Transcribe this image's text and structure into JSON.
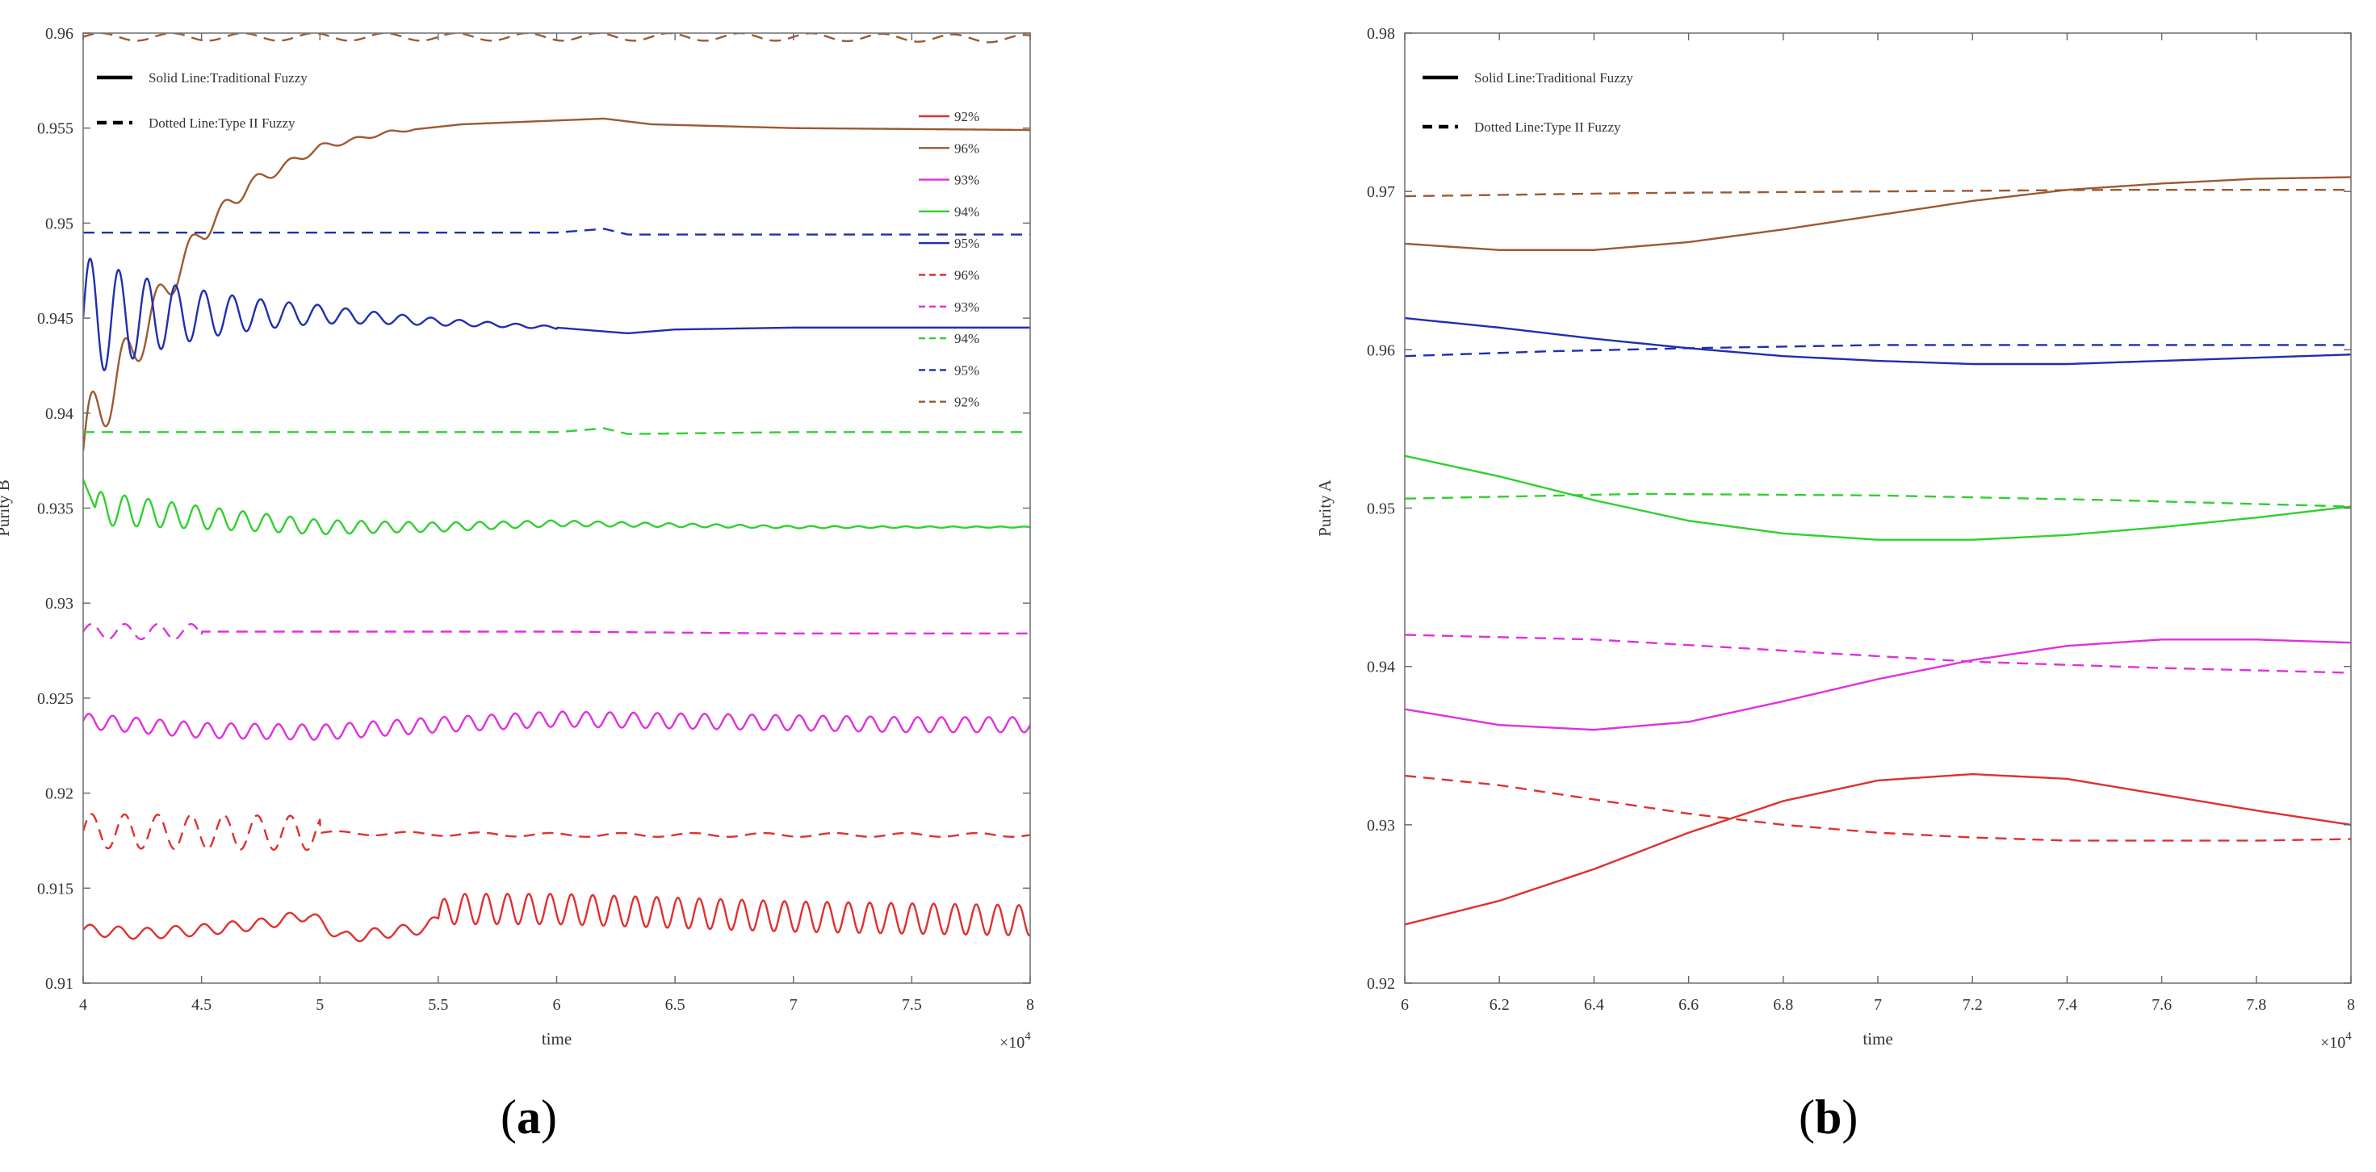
{
  "panel_labels": [
    {
      "open": "(",
      "letter": "a",
      "close": ")"
    },
    {
      "open": "(",
      "letter": "b",
      "close": ")"
    }
  ],
  "colors": {
    "red": "#e03030",
    "brown": "#9c5a32",
    "magenta": "#e030e0",
    "green": "#30d030",
    "blue": "#1f2fb0",
    "black": "#000000"
  },
  "chart_data": [
    {
      "type": "line",
      "panel": "a",
      "xlabel": "time",
      "ylabel": "Purity B",
      "xlim": [
        4,
        8
      ],
      "ylim": [
        0.91,
        0.96
      ],
      "xticks": [
        4,
        4.5,
        5,
        5.5,
        6,
        6.5,
        7,
        7.5,
        8
      ],
      "xtick_labels": [
        "4",
        "4.5",
        "5",
        "5.5",
        "6",
        "6.5",
        "7",
        "7.5",
        "8"
      ],
      "yticks": [
        0.91,
        0.915,
        0.92,
        0.925,
        0.93,
        0.935,
        0.94,
        0.945,
        0.95,
        0.955,
        0.96
      ],
      "ytick_labels": [
        "0.91",
        "0.915",
        "0.92",
        "0.925",
        "0.93",
        "0.935",
        "0.94",
        "0.945",
        "0.95",
        "0.955",
        "0.96"
      ],
      "x_multiplier": "×10",
      "x_multiplier_exp": "4",
      "style_legend": [
        {
          "label": "Solid Line:Traditional Fuzzy",
          "style": "solid"
        },
        {
          "label": "Dotted Line:Type II Fuzzy",
          "style": "dashed"
        }
      ],
      "series_legend": [
        {
          "label": "92%",
          "color": "red",
          "style": "solid"
        },
        {
          "label": "96%",
          "color": "brown",
          "style": "solid"
        },
        {
          "label": "93%",
          "color": "magenta",
          "style": "solid"
        },
        {
          "label": "94%",
          "color": "green",
          "style": "solid"
        },
        {
          "label": "95%",
          "color": "blue",
          "style": "solid"
        },
        {
          "label": "96%",
          "color": "red",
          "style": "dashed"
        },
        {
          "label": "93%",
          "color": "magenta",
          "style": "dashed"
        },
        {
          "label": "94%",
          "color": "green",
          "style": "dashed"
        },
        {
          "label": "95%",
          "color": "blue",
          "style": "dashed"
        },
        {
          "label": "92%",
          "color": "brown",
          "style": "dashed"
        }
      ],
      "series": [
        {
          "name": "92%",
          "color": "red",
          "style": "solid",
          "x": [
            4.0,
            4.25,
            4.5,
            4.75,
            4.95,
            5.1,
            5.3,
            5.45,
            5.55,
            6.0,
            6.5,
            7.0,
            7.5,
            8.0
          ],
          "y": [
            0.9128,
            0.9126,
            0.9128,
            0.9131,
            0.9136,
            0.9124,
            0.9127,
            0.9129,
            0.9139,
            0.9139,
            0.9137,
            0.9135,
            0.9134,
            0.9133
          ],
          "osc": [
            {
              "from": 4.0,
              "to": 5.5,
              "amp": 0.0003,
              "period": 0.12,
              "decay": 0
            },
            {
              "from": 5.5,
              "to": 8.0,
              "amp": 0.0008,
              "period": 0.09,
              "decay": 0
            }
          ]
        },
        {
          "name": "96%",
          "color": "brown",
          "style": "solid",
          "x": [
            4.0,
            4.1,
            4.2,
            4.35,
            4.5,
            4.7,
            5.0,
            5.3,
            5.6,
            6.0,
            6.2,
            6.4,
            7.0,
            8.0
          ],
          "y": [
            0.938,
            0.941,
            0.943,
            0.9465,
            0.9495,
            0.952,
            0.954,
            0.9548,
            0.9552,
            0.9554,
            0.9555,
            0.9552,
            0.955,
            0.9549
          ],
          "osc": [
            {
              "from": 4.0,
              "to": 5.4,
              "amp": 0.0022,
              "period": 0.14,
              "decay": 2.6
            }
          ]
        },
        {
          "name": "93%",
          "color": "magenta",
          "style": "solid",
          "x": [
            4.0,
            4.5,
            5.0,
            5.5,
            6.0,
            6.5,
            7.0,
            7.5,
            8.0
          ],
          "y": [
            0.9238,
            0.9233,
            0.9232,
            0.9236,
            0.9239,
            0.9238,
            0.9237,
            0.9236,
            0.9236
          ],
          "osc": [
            {
              "from": 4.0,
              "to": 8.0,
              "amp": 0.0004,
              "period": 0.1,
              "decay": 0
            }
          ]
        },
        {
          "name": "94%",
          "color": "green",
          "style": "solid",
          "x": [
            4.0,
            4.05,
            4.5,
            5.0,
            5.5,
            6.0,
            6.5,
            7.0,
            7.5,
            8.0
          ],
          "y": [
            0.9365,
            0.935,
            0.9345,
            0.934,
            0.934,
            0.9342,
            0.9341,
            0.934,
            0.934,
            0.934
          ],
          "osc": [
            {
              "from": 4.05,
              "to": 8.0,
              "amp": 0.0009,
              "period": 0.1,
              "decay": 0.9
            }
          ]
        },
        {
          "name": "95%",
          "color": "blue",
          "style": "solid",
          "x": [
            4.0,
            4.5,
            5.0,
            5.5,
            6.0,
            6.3,
            6.5,
            7.0,
            7.5,
            8.0
          ],
          "y": [
            0.945,
            0.9452,
            0.9452,
            0.9448,
            0.9445,
            0.9442,
            0.9444,
            0.9445,
            0.9445,
            0.9445
          ],
          "osc": [
            {
              "from": 4.0,
              "to": 6.0,
              "amp": 0.0033,
              "period": 0.12,
              "decay": 1.9
            }
          ]
        },
        {
          "name": "96%",
          "color": "red",
          "style": "dashed",
          "x": [
            4.0,
            5.0,
            6.0,
            7.0,
            8.0
          ],
          "y": [
            0.918,
            0.9179,
            0.9178,
            0.9178,
            0.9178
          ],
          "osc": [
            {
              "from": 4.0,
              "to": 5.0,
              "amp": 0.0009,
              "period": 0.14,
              "decay": 0
            },
            {
              "from": 5.0,
              "to": 8.0,
              "amp": 0.0001,
              "period": 0.3,
              "decay": 0
            }
          ]
        },
        {
          "name": "93%",
          "color": "magenta",
          "style": "dashed",
          "x": [
            4.0,
            5.0,
            6.0,
            7.0,
            8.0
          ],
          "y": [
            0.9285,
            0.9285,
            0.9285,
            0.9284,
            0.9284
          ],
          "osc": [
            {
              "from": 4.0,
              "to": 4.5,
              "amp": 0.0004,
              "period": 0.14,
              "decay": 0
            }
          ]
        },
        {
          "name": "94%",
          "color": "green",
          "style": "dashed",
          "x": [
            4.0,
            5.0,
            6.0,
            6.2,
            6.3,
            7.0,
            8.0
          ],
          "y": [
            0.939,
            0.939,
            0.939,
            0.9392,
            0.9389,
            0.939,
            0.939
          ],
          "osc": []
        },
        {
          "name": "95%",
          "color": "blue",
          "style": "dashed",
          "x": [
            4.0,
            5.0,
            6.0,
            6.2,
            6.3,
            7.0,
            8.0
          ],
          "y": [
            0.9495,
            0.9495,
            0.9495,
            0.9497,
            0.9494,
            0.9494,
            0.9494
          ],
          "osc": []
        },
        {
          "name": "92%",
          "color": "brown",
          "style": "dashed",
          "x": [
            4.0,
            5.0,
            6.0,
            7.0,
            8.0
          ],
          "y": [
            0.9598,
            0.9598,
            0.9598,
            0.9598,
            0.9597
          ],
          "osc": [
            {
              "from": 4.0,
              "to": 8.0,
              "amp": 0.0002,
              "period": 0.3,
              "decay": 0
            }
          ]
        }
      ]
    },
    {
      "type": "line",
      "panel": "b",
      "xlabel": "time",
      "ylabel": "Purity A",
      "xlim": [
        6,
        8
      ],
      "ylim": [
        0.92,
        0.98
      ],
      "xticks": [
        6,
        6.2,
        6.4,
        6.6,
        6.8,
        7,
        7.2,
        7.4,
        7.6,
        7.8,
        8
      ],
      "xtick_labels": [
        "6",
        "6.2",
        "6.4",
        "6.6",
        "6.8",
        "7",
        "7.2",
        "7.4",
        "7.6",
        "7.8",
        "8"
      ],
      "yticks": [
        0.92,
        0.93,
        0.94,
        0.95,
        0.96,
        0.97,
        0.98
      ],
      "ytick_labels": [
        "0.92",
        "0.93",
        "0.94",
        "0.95",
        "0.96",
        "0.97",
        "0.98"
      ],
      "x_multiplier": "×10",
      "x_multiplier_exp": "4",
      "style_legend": [
        {
          "label": "Solid Line:Traditional Fuzzy",
          "style": "solid"
        },
        {
          "label": "Dotted Line:Type II Fuzzy",
          "style": "dashed"
        }
      ],
      "series": [
        {
          "name": "brown-solid",
          "color": "brown",
          "style": "solid",
          "x": [
            6.0,
            6.2,
            6.4,
            6.6,
            6.8,
            7.0,
            7.2,
            7.4,
            7.6,
            7.8,
            8.0
          ],
          "y": [
            0.9667,
            0.9663,
            0.9663,
            0.9668,
            0.9676,
            0.9685,
            0.9694,
            0.9701,
            0.9705,
            0.9708,
            0.9709
          ]
        },
        {
          "name": "brown-dashed",
          "color": "brown",
          "style": "dashed",
          "x": [
            6.0,
            6.5,
            7.0,
            7.5,
            8.0
          ],
          "y": [
            0.9697,
            0.9699,
            0.97,
            0.9701,
            0.9701
          ]
        },
        {
          "name": "blue-solid",
          "color": "blue",
          "style": "solid",
          "x": [
            6.0,
            6.2,
            6.4,
            6.6,
            6.8,
            7.0,
            7.2,
            7.4,
            7.6,
            7.8,
            8.0
          ],
          "y": [
            0.962,
            0.9614,
            0.9607,
            0.9601,
            0.9596,
            0.9593,
            0.9591,
            0.9591,
            0.9593,
            0.9595,
            0.9597
          ]
        },
        {
          "name": "blue-dashed",
          "color": "blue",
          "style": "dashed",
          "x": [
            6.0,
            6.3,
            6.6,
            7.0,
            7.5,
            8.0
          ],
          "y": [
            0.9596,
            0.9599,
            0.9601,
            0.9603,
            0.9603,
            0.9603
          ]
        },
        {
          "name": "green-solid",
          "color": "green",
          "style": "solid",
          "x": [
            6.0,
            6.2,
            6.4,
            6.6,
            6.8,
            7.0,
            7.2,
            7.4,
            7.6,
            7.8,
            8.0
          ],
          "y": [
            0.9533,
            0.952,
            0.9505,
            0.9492,
            0.9484,
            0.948,
            0.948,
            0.9483,
            0.9488,
            0.9494,
            0.9501
          ]
        },
        {
          "name": "green-dashed",
          "color": "green",
          "style": "dashed",
          "x": [
            6.0,
            6.5,
            7.0,
            7.5,
            8.0
          ],
          "y": [
            0.9506,
            0.9509,
            0.9508,
            0.9505,
            0.9501
          ]
        },
        {
          "name": "magenta-solid",
          "color": "magenta",
          "style": "solid",
          "x": [
            6.0,
            6.2,
            6.4,
            6.6,
            6.8,
            7.0,
            7.2,
            7.4,
            7.6,
            7.8,
            8.0
          ],
          "y": [
            0.9373,
            0.9363,
            0.936,
            0.9365,
            0.9378,
            0.9392,
            0.9404,
            0.9413,
            0.9417,
            0.9417,
            0.9415
          ]
        },
        {
          "name": "magenta-dashed",
          "color": "magenta",
          "style": "dashed",
          "x": [
            6.0,
            6.4,
            6.8,
            7.2,
            7.6,
            8.0
          ],
          "y": [
            0.942,
            0.9417,
            0.941,
            0.9403,
            0.9399,
            0.9396
          ]
        },
        {
          "name": "red-solid",
          "color": "red",
          "style": "solid",
          "x": [
            6.0,
            6.2,
            6.4,
            6.6,
            6.8,
            7.0,
            7.2,
            7.4,
            7.6,
            7.8,
            8.0
          ],
          "y": [
            0.9237,
            0.9252,
            0.9272,
            0.9295,
            0.9315,
            0.9328,
            0.9332,
            0.9329,
            0.9319,
            0.9309,
            0.93
          ]
        },
        {
          "name": "red-dashed",
          "color": "red",
          "style": "dashed",
          "x": [
            6.0,
            6.2,
            6.4,
            6.6,
            6.8,
            7.0,
            7.2,
            7.4,
            7.6,
            7.8,
            8.0
          ],
          "y": [
            0.9331,
            0.9325,
            0.9316,
            0.9307,
            0.93,
            0.9295,
            0.9292,
            0.929,
            0.929,
            0.929,
            0.9291
          ]
        }
      ]
    }
  ]
}
